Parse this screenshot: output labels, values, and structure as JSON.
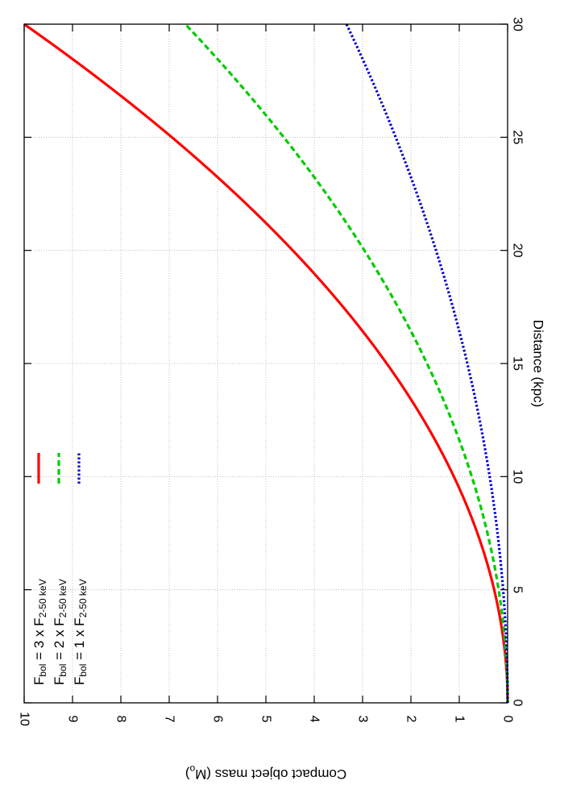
{
  "chart_data": {
    "type": "line",
    "xlabel": "Distance (kpc)",
    "ylabel": "Compact object mass (M",
    "ylabel_sub": "o",
    "ylabel_suffix": ")",
    "xlim": [
      0,
      30
    ],
    "ylim": [
      0,
      10
    ],
    "x_ticks": [
      0,
      5,
      10,
      15,
      20,
      25,
      30
    ],
    "y_ticks": [
      0,
      1,
      2,
      3,
      4,
      5,
      6,
      7,
      8,
      9,
      10
    ],
    "grid": true,
    "legend_placement": "top-left",
    "orientation": "rotated-90-clockwise",
    "series": [
      {
        "name": "F_bol = 3 x F_2-50 keV",
        "legend_main": "F",
        "legend_sub1": "bol",
        "legend_mid": " = 3 x F",
        "legend_sub2": "2-50 keV",
        "color": "#ff0000",
        "dash": "solid",
        "x": [
          0,
          2,
          4,
          6,
          8,
          10,
          12,
          14,
          16,
          18,
          20,
          22,
          24,
          26,
          28,
          30
        ],
        "y": [
          0,
          0.044,
          0.178,
          0.4,
          0.711,
          1.111,
          1.6,
          2.178,
          2.844,
          3.6,
          4.444,
          5.378,
          6.4,
          7.511,
          8.711,
          10.0
        ]
      },
      {
        "name": "F_bol = 2 x F_2-50 keV",
        "legend_main": "F",
        "legend_sub1": "bol",
        "legend_mid": " = 2 x F",
        "legend_sub2": "2-50 keV",
        "color": "#00cc00",
        "dash": "dashed",
        "x": [
          0,
          2,
          4,
          6,
          8,
          10,
          12,
          14,
          16,
          18,
          20,
          22,
          24,
          26,
          28,
          30
        ],
        "y": [
          0,
          0.03,
          0.119,
          0.267,
          0.474,
          0.741,
          1.067,
          1.452,
          1.896,
          2.4,
          2.963,
          3.585,
          4.267,
          5.007,
          5.807,
          6.667
        ]
      },
      {
        "name": "F_bol = 1 x F_2-50 keV",
        "legend_main": "F",
        "legend_sub1": "bol",
        "legend_mid": " = 1 x F",
        "legend_sub2": "2-50 keV",
        "color": "#0000cc",
        "dash": "dotted",
        "x": [
          0,
          2,
          4,
          6,
          8,
          10,
          12,
          14,
          16,
          18,
          20,
          22,
          24,
          26,
          28,
          30
        ],
        "y": [
          0,
          0.015,
          0.059,
          0.133,
          0.237,
          0.37,
          0.533,
          0.726,
          0.948,
          1.2,
          1.481,
          1.793,
          2.133,
          2.504,
          2.904,
          3.333
        ]
      }
    ]
  }
}
